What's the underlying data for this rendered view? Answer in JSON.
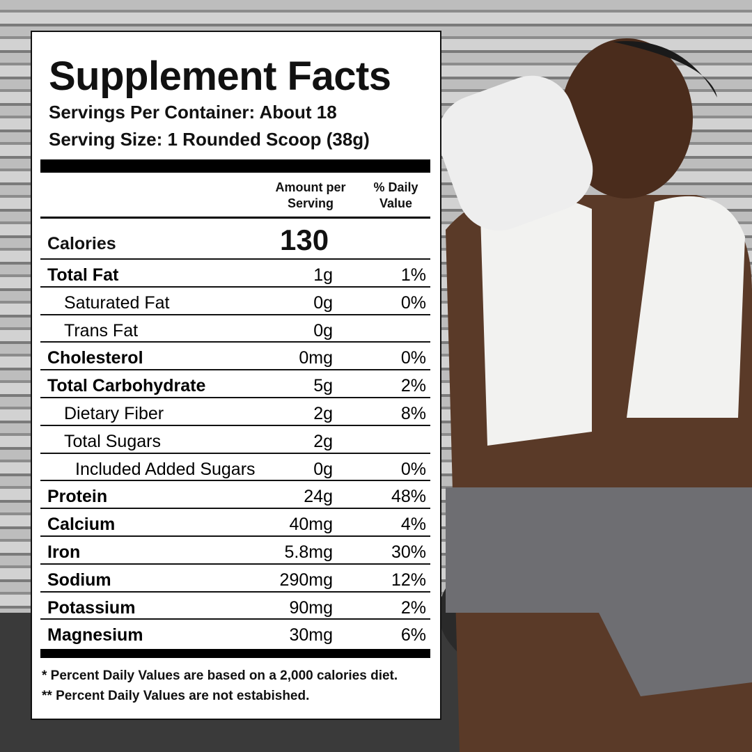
{
  "label": {
    "title": "Supplement Facts",
    "servings_per_container": "Servings Per Container: About 18",
    "serving_size": "Serving Size: 1 Rounded Scoop (38g)",
    "header": {
      "amount": "Amount per Serving",
      "daily_value": "% Daily Value"
    },
    "calories": {
      "name": "Calories",
      "amount": "130"
    },
    "rows": [
      {
        "name": "Total Fat",
        "amount": "1g",
        "daily_value": "1%"
      },
      {
        "name": "Saturated Fat",
        "amount": "0g",
        "daily_value": "0%"
      },
      {
        "name": "Trans Fat",
        "amount": "0g"
      },
      {
        "name": "Cholesterol",
        "amount": "0mg",
        "daily_value": "0%"
      },
      {
        "name": "Total Carbohydrate",
        "amount": "5g",
        "daily_value": "2%"
      },
      {
        "name": "Dietary Fiber",
        "amount": "2g",
        "daily_value": "8%"
      },
      {
        "name": "Total Sugars",
        "amount": "2g"
      },
      {
        "name": "Included Added Sugars",
        "amount": "0g",
        "daily_value": "0%"
      },
      {
        "name": "Protein",
        "amount": "24g",
        "daily_value": "48%"
      },
      {
        "name": "Calcium",
        "amount": "40mg",
        "daily_value": "4%"
      },
      {
        "name": "Iron",
        "amount": "5.8mg",
        "daily_value": "30%"
      },
      {
        "name": "Sodium",
        "amount": "290mg",
        "daily_value": "12%"
      },
      {
        "name": "Potassium",
        "amount": "90mg",
        "daily_value": "2%"
      },
      {
        "name": "Magnesium",
        "amount": "30mg",
        "daily_value": "6%"
      }
    ],
    "footnotes": [
      "* Percent Daily Values are based on a 2,000 calories diet.",
      "** Percent Daily Values are not estabished."
    ]
  }
}
